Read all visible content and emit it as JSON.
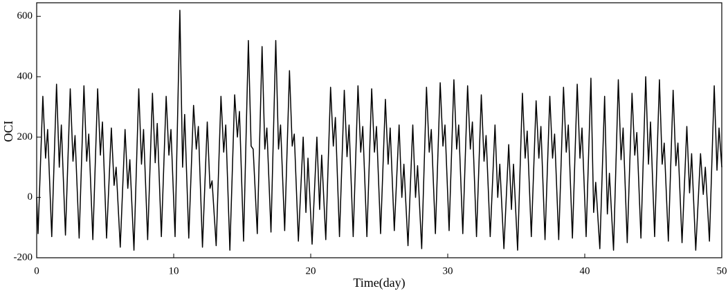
{
  "chart_data": {
    "type": "line",
    "x_label": "Time(day)",
    "y_label": "OCI",
    "xlim": [
      0,
      50
    ],
    "ylim": [
      -200,
      645
    ],
    "xticks": [
      0,
      10,
      20,
      30,
      40,
      50
    ],
    "yticks": [
      -200,
      0,
      200,
      400,
      600
    ],
    "series": [
      {
        "color": "#000000",
        "x": [
          0,
          0.1,
          0.45,
          0.65,
          0.8,
          1.1,
          1.45,
          1.65,
          1.8,
          2.1,
          2.45,
          2.65,
          2.8,
          3.1,
          3.45,
          3.65,
          3.8,
          4.1,
          4.45,
          4.65,
          4.8,
          5.1,
          5.45,
          5.65,
          5.8,
          6.1,
          6.45,
          6.65,
          6.8,
          7.1,
          7.45,
          7.65,
          7.8,
          8.1,
          8.45,
          8.65,
          8.8,
          9.1,
          9.45,
          9.65,
          9.8,
          10.1,
          10.45,
          10.65,
          10.8,
          11.1,
          11.45,
          11.65,
          11.8,
          12.1,
          12.45,
          12.65,
          12.8,
          13.1,
          13.45,
          13.65,
          13.8,
          14.1,
          14.45,
          14.65,
          14.8,
          15.1,
          15.45,
          15.65,
          15.8,
          16.1,
          16.45,
          16.65,
          16.8,
          17.1,
          17.45,
          17.65,
          17.8,
          18.1,
          18.45,
          18.65,
          18.8,
          19.1,
          19.45,
          19.65,
          19.8,
          20.1,
          20.45,
          20.65,
          20.8,
          21.1,
          21.45,
          21.65,
          21.8,
          22.1,
          22.45,
          22.65,
          22.8,
          23.1,
          23.45,
          23.65,
          23.8,
          24.1,
          24.45,
          24.65,
          24.8,
          25.1,
          25.45,
          25.65,
          25.8,
          26.1,
          26.45,
          26.65,
          26.8,
          27.1,
          27.45,
          27.65,
          27.8,
          28.1,
          28.45,
          28.65,
          28.8,
          29.1,
          29.45,
          29.65,
          29.8,
          30.1,
          30.45,
          30.65,
          30.8,
          31.1,
          31.45,
          31.65,
          31.8,
          32.1,
          32.45,
          32.65,
          32.8,
          33.1,
          33.45,
          33.65,
          33.8,
          34.1,
          34.45,
          34.65,
          34.8,
          35.1,
          35.45,
          35.65,
          35.8,
          36.1,
          36.45,
          36.65,
          36.8,
          37.1,
          37.45,
          37.65,
          37.8,
          38.1,
          38.45,
          38.65,
          38.8,
          39.1,
          39.45,
          39.65,
          39.8,
          40.1,
          40.45,
          40.65,
          40.8,
          41.1,
          41.45,
          41.65,
          41.8,
          42.1,
          42.45,
          42.65,
          42.8,
          43.1,
          43.45,
          43.65,
          43.8,
          44.1,
          44.45,
          44.65,
          44.8,
          45.1,
          45.45,
          45.65,
          45.8,
          46.1,
          46.45,
          46.65,
          46.8,
          47.1,
          47.45,
          47.65,
          47.8,
          48.1,
          48.45,
          48.65,
          48.8,
          49.1,
          49.45,
          49.65,
          49.8,
          50
        ],
        "values": [
          0,
          -120,
          335,
          130,
          225,
          -130,
          375,
          100,
          240,
          -125,
          360,
          120,
          205,
          -135,
          370,
          120,
          210,
          -140,
          360,
          140,
          250,
          -135,
          230,
          40,
          100,
          -165,
          225,
          30,
          125,
          -175,
          360,
          110,
          225,
          -140,
          345,
          115,
          245,
          -130,
          335,
          140,
          225,
          -130,
          620,
          100,
          275,
          -135,
          305,
          160,
          235,
          -165,
          250,
          30,
          55,
          -160,
          335,
          150,
          240,
          -175,
          340,
          200,
          285,
          -145,
          520,
          170,
          160,
          -120,
          500,
          160,
          230,
          -115,
          520,
          160,
          240,
          -110,
          420,
          170,
          210,
          -145,
          200,
          -50,
          130,
          -155,
          200,
          -40,
          140,
          -140,
          365,
          170,
          265,
          -130,
          355,
          135,
          240,
          -130,
          370,
          150,
          235,
          -130,
          360,
          150,
          235,
          -120,
          325,
          110,
          230,
          -110,
          240,
          0,
          110,
          -160,
          240,
          0,
          105,
          -170,
          365,
          150,
          225,
          -120,
          380,
          170,
          240,
          -110,
          390,
          160,
          240,
          -120,
          370,
          160,
          250,
          -130,
          340,
          120,
          205,
          -130,
          240,
          0,
          110,
          -170,
          175,
          -40,
          110,
          -175,
          345,
          130,
          220,
          -130,
          320,
          130,
          235,
          -140,
          335,
          130,
          210,
          -140,
          365,
          150,
          240,
          -135,
          375,
          130,
          230,
          -130,
          395,
          -50,
          50,
          -170,
          335,
          -55,
          80,
          -175,
          390,
          125,
          230,
          -150,
          345,
          140,
          215,
          -135,
          400,
          110,
          250,
          -130,
          390,
          110,
          180,
          -145,
          355,
          105,
          180,
          -150,
          235,
          15,
          145,
          -175,
          145,
          10,
          100,
          -145,
          370,
          90,
          230,
          100
        ]
      }
    ]
  }
}
